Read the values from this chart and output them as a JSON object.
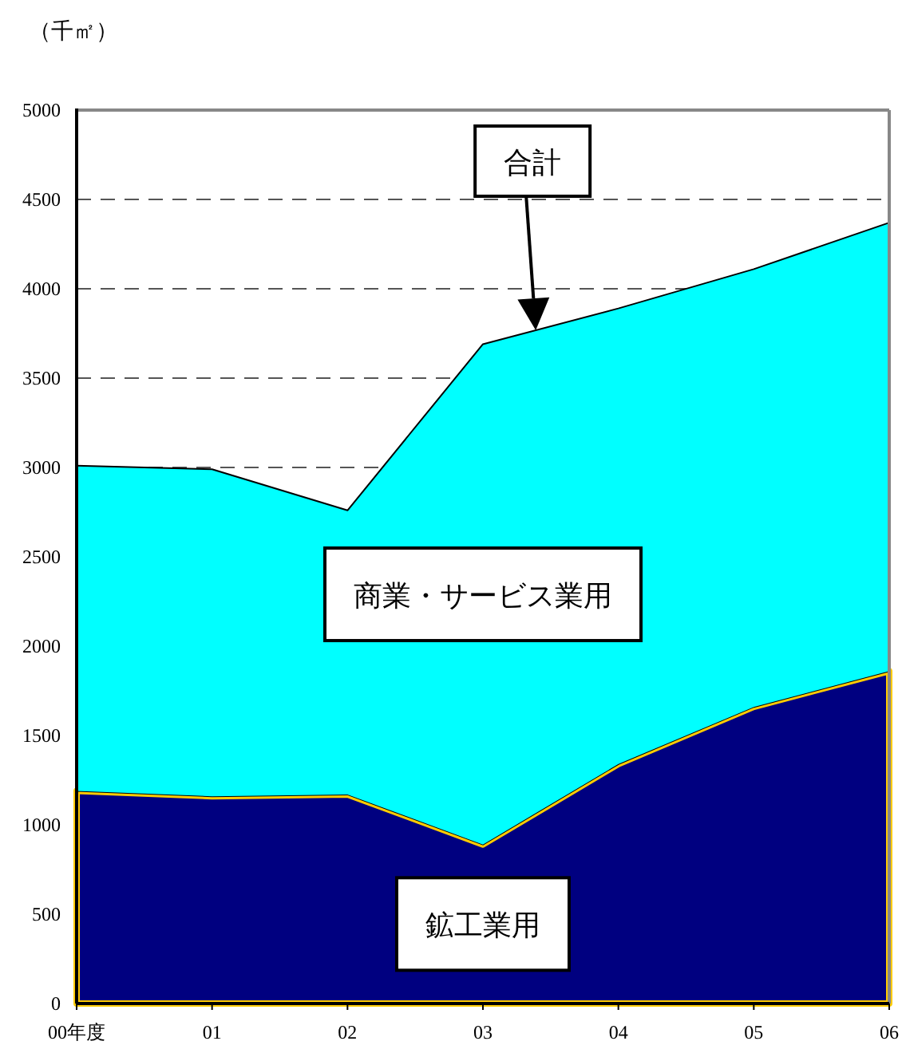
{
  "chart_data": {
    "type": "area",
    "stacked": true,
    "ylabel": "（千㎡）",
    "x": [
      0,
      1,
      2,
      3,
      4,
      5,
      6
    ],
    "xlim": [
      0,
      6
    ],
    "xticks": [
      {
        "value": 0,
        "label": "00年度"
      },
      {
        "value": 1,
        "label": "01"
      },
      {
        "value": 2,
        "label": "02"
      },
      {
        "value": 3,
        "label": "03"
      },
      {
        "value": 4,
        "label": "04"
      },
      {
        "value": 5,
        "label": "05"
      },
      {
        "value": 6,
        "label": "06"
      }
    ],
    "ylim": [
      0,
      5000
    ],
    "yticks": [
      0,
      500,
      1000,
      1500,
      2000,
      2500,
      3000,
      3500,
      4000,
      4500,
      5000
    ],
    "grid": "y",
    "line_style": "solid",
    "series": [
      {
        "name": "鉱工業用",
        "color": "#000080",
        "values": [
          1190,
          1160,
          1170,
          890,
          1340,
          1660,
          1860
        ]
      },
      {
        "name": "商業・サービス業用",
        "color": "#00ffff",
        "values": [
          1820,
          1830,
          1590,
          2800,
          2550,
          2450,
          2510
        ]
      }
    ],
    "annotations": [
      "合計"
    ]
  }
}
